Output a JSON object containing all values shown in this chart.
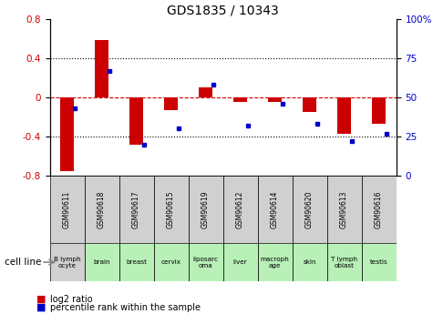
{
  "title": "GDS1835 / 10343",
  "samples": [
    "GSM90611",
    "GSM90618",
    "GSM90617",
    "GSM90615",
    "GSM90619",
    "GSM90612",
    "GSM90614",
    "GSM90620",
    "GSM90613",
    "GSM90616"
  ],
  "cell_lines": [
    "B lymph\nocyte",
    "brain",
    "breast",
    "cervix",
    "liposarc\noma",
    "liver",
    "macroph\nage",
    "skin",
    "T lymph\noblast",
    "testis"
  ],
  "cell_line_colors": [
    "#d0d0d0",
    "#b8f0b8",
    "#b8f0b8",
    "#b8f0b8",
    "#b8f0b8",
    "#b8f0b8",
    "#b8f0b8",
    "#b8f0b8",
    "#b8f0b8",
    "#b8f0b8"
  ],
  "sample_box_color": "#d0d0d0",
  "log2_ratio": [
    -0.75,
    0.58,
    -0.48,
    -0.13,
    0.1,
    -0.05,
    -0.05,
    -0.15,
    -0.37,
    -0.27
  ],
  "percentile_rank": [
    43,
    67,
    20,
    30,
    58,
    32,
    46,
    33,
    22,
    27
  ],
  "bar_color": "#cc0000",
  "dot_color": "#0000cc",
  "ylim": [
    -0.8,
    0.8
  ],
  "yticks_left": [
    -0.8,
    -0.4,
    0.0,
    0.4,
    0.8
  ],
  "yticks_right": [
    0,
    25,
    50,
    75,
    100
  ],
  "legend_red": "log2 ratio",
  "legend_blue": "percentile rank within the sample",
  "cell_line_label": "cell line"
}
